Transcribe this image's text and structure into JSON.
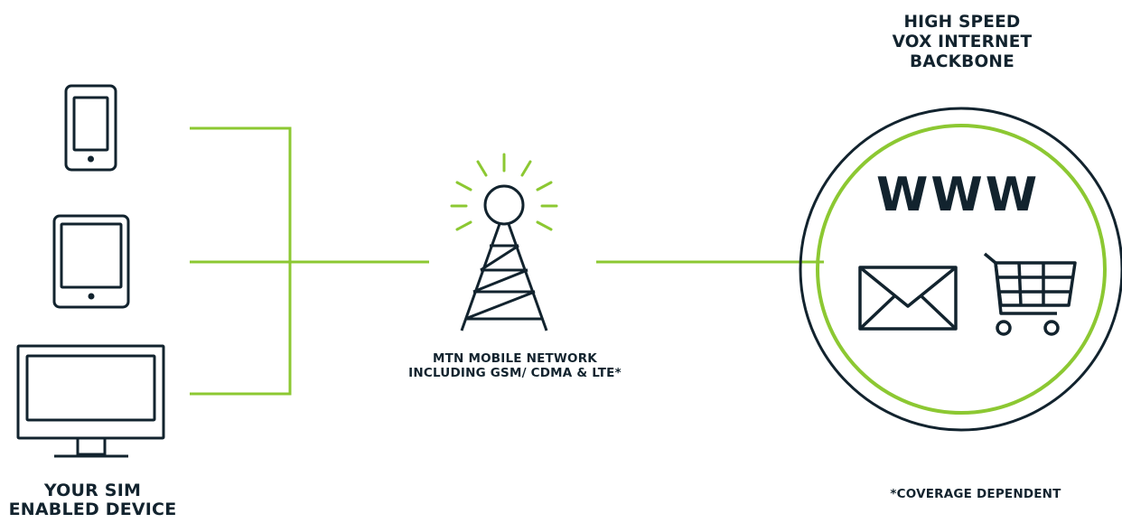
{
  "device_label": {
    "line1": "YOUR SIM",
    "line2": "ENABLED DEVICE"
  },
  "network_label": {
    "line1": "MTN MOBILE NETWORK",
    "line2": "INCLUDING GSM/ CDMA & LTE*"
  },
  "backbone_label": {
    "line1": "HIGH SPEED",
    "line2": "VOX INTERNET",
    "line3": "BACKBONE"
  },
  "www_text": "WWW",
  "footnote": "*COVERAGE DEPENDENT",
  "colors": {
    "accent": "#8cc832",
    "dark": "#12232e",
    "background": "#ffffff"
  },
  "icons": [
    "smartphone-icon",
    "tablet-icon",
    "monitor-icon",
    "cell-tower-icon",
    "envelope-icon",
    "shopping-cart-icon"
  ]
}
